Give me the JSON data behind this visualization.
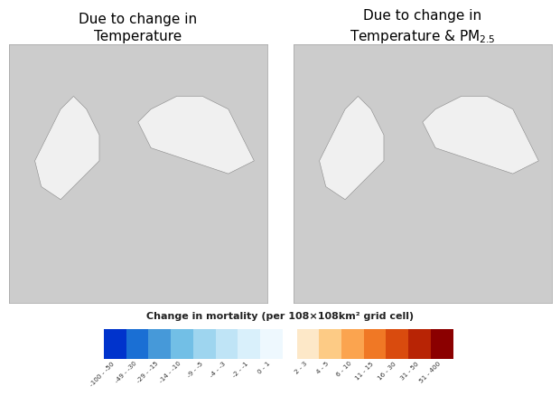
{
  "title_left": "Due to change in\nTemperature",
  "title_right": "Due to change in\nTemperature & PM$_{2.5}$",
  "colorbar_label": "Change in mortality (per 108×108km² grid cell)",
  "blue_colors": [
    "#0033CC",
    "#1A6FD4",
    "#4699D9",
    "#72BFE6",
    "#9ED5EF",
    "#BFE4F6",
    "#D9F0FB",
    "#EEF8FE"
  ],
  "warm_colors": [
    "#FDE8C8",
    "#FDCB85",
    "#FBA44F",
    "#F07825",
    "#D94B0E",
    "#B82405",
    "#8B0000"
  ],
  "tick_labels": [
    "-100 - -50",
    "-49 - -30",
    "-29 - -15",
    "-14 - -10",
    "-9 - -5",
    "-4 - -3",
    "-2 - -1",
    "0 - 1",
    "2 - 3",
    "4 - 5",
    "6 - 10",
    "11 - 15",
    "16 - 30",
    "31 - 50",
    "51 - 400"
  ],
  "map_bg": "#cccccc",
  "land_color": "#f0f0f0",
  "ocean_label_color": "#7aadcc",
  "title_fontsize": 11,
  "fig_bg": "white"
}
